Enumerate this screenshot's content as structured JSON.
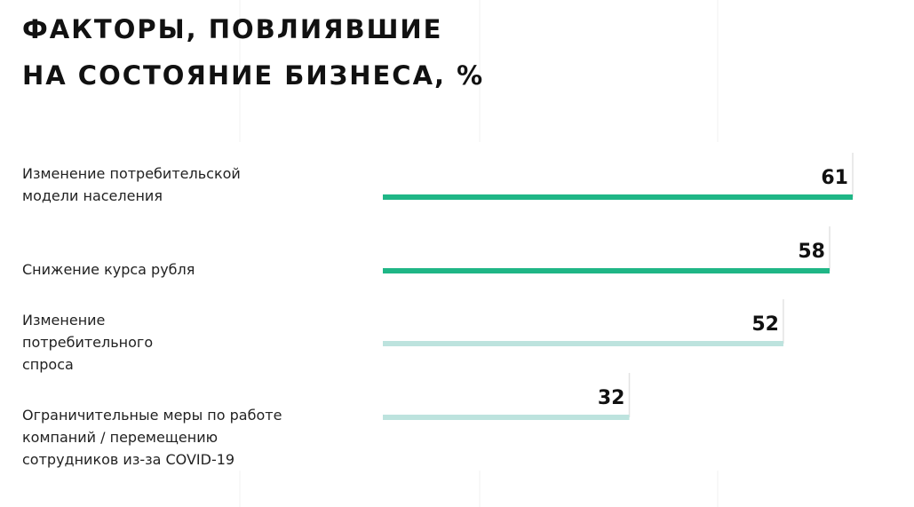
{
  "chart_data": {
    "type": "bar",
    "orientation": "horizontal",
    "title": [
      "ФАКТОРЫ, ПОВЛИЯВШИЕ",
      "НА СОСТОЯНИЕ БИЗНЕСА, %"
    ],
    "categories": [
      "Изменение потребительской модели населения",
      "Снижение курса рубля",
      "Изменение потребительного спроса",
      "Ограничительные меры по работе компаний / перемещению сотрудников из-за COVID-19"
    ],
    "values": [
      61,
      58,
      52,
      32
    ],
    "colors": [
      "#1fb686",
      "#1fb686",
      "#bde3de",
      "#bde3de"
    ]
  }
}
